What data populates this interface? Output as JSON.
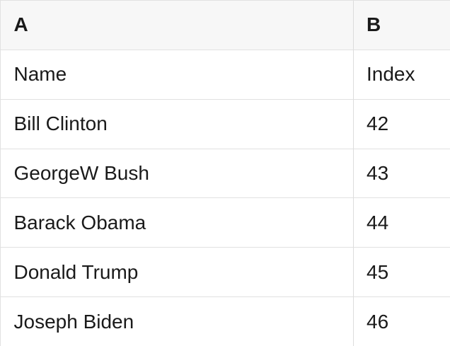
{
  "table": {
    "column_headers": [
      "A",
      "B"
    ],
    "rows": [
      [
        "Name",
        "Index"
      ],
      [
        "Bill Clinton",
        "42"
      ],
      [
        "GeorgeW Bush",
        "43"
      ],
      [
        "Barack Obama",
        "44"
      ],
      [
        "Donald Trump",
        "45"
      ],
      [
        "Joseph Biden",
        "46"
      ]
    ]
  },
  "colors": {
    "header_background": "#f7f7f7",
    "cell_background": "#ffffff",
    "gridline": "#e1e1e1",
    "text": "#1a1a1a"
  }
}
